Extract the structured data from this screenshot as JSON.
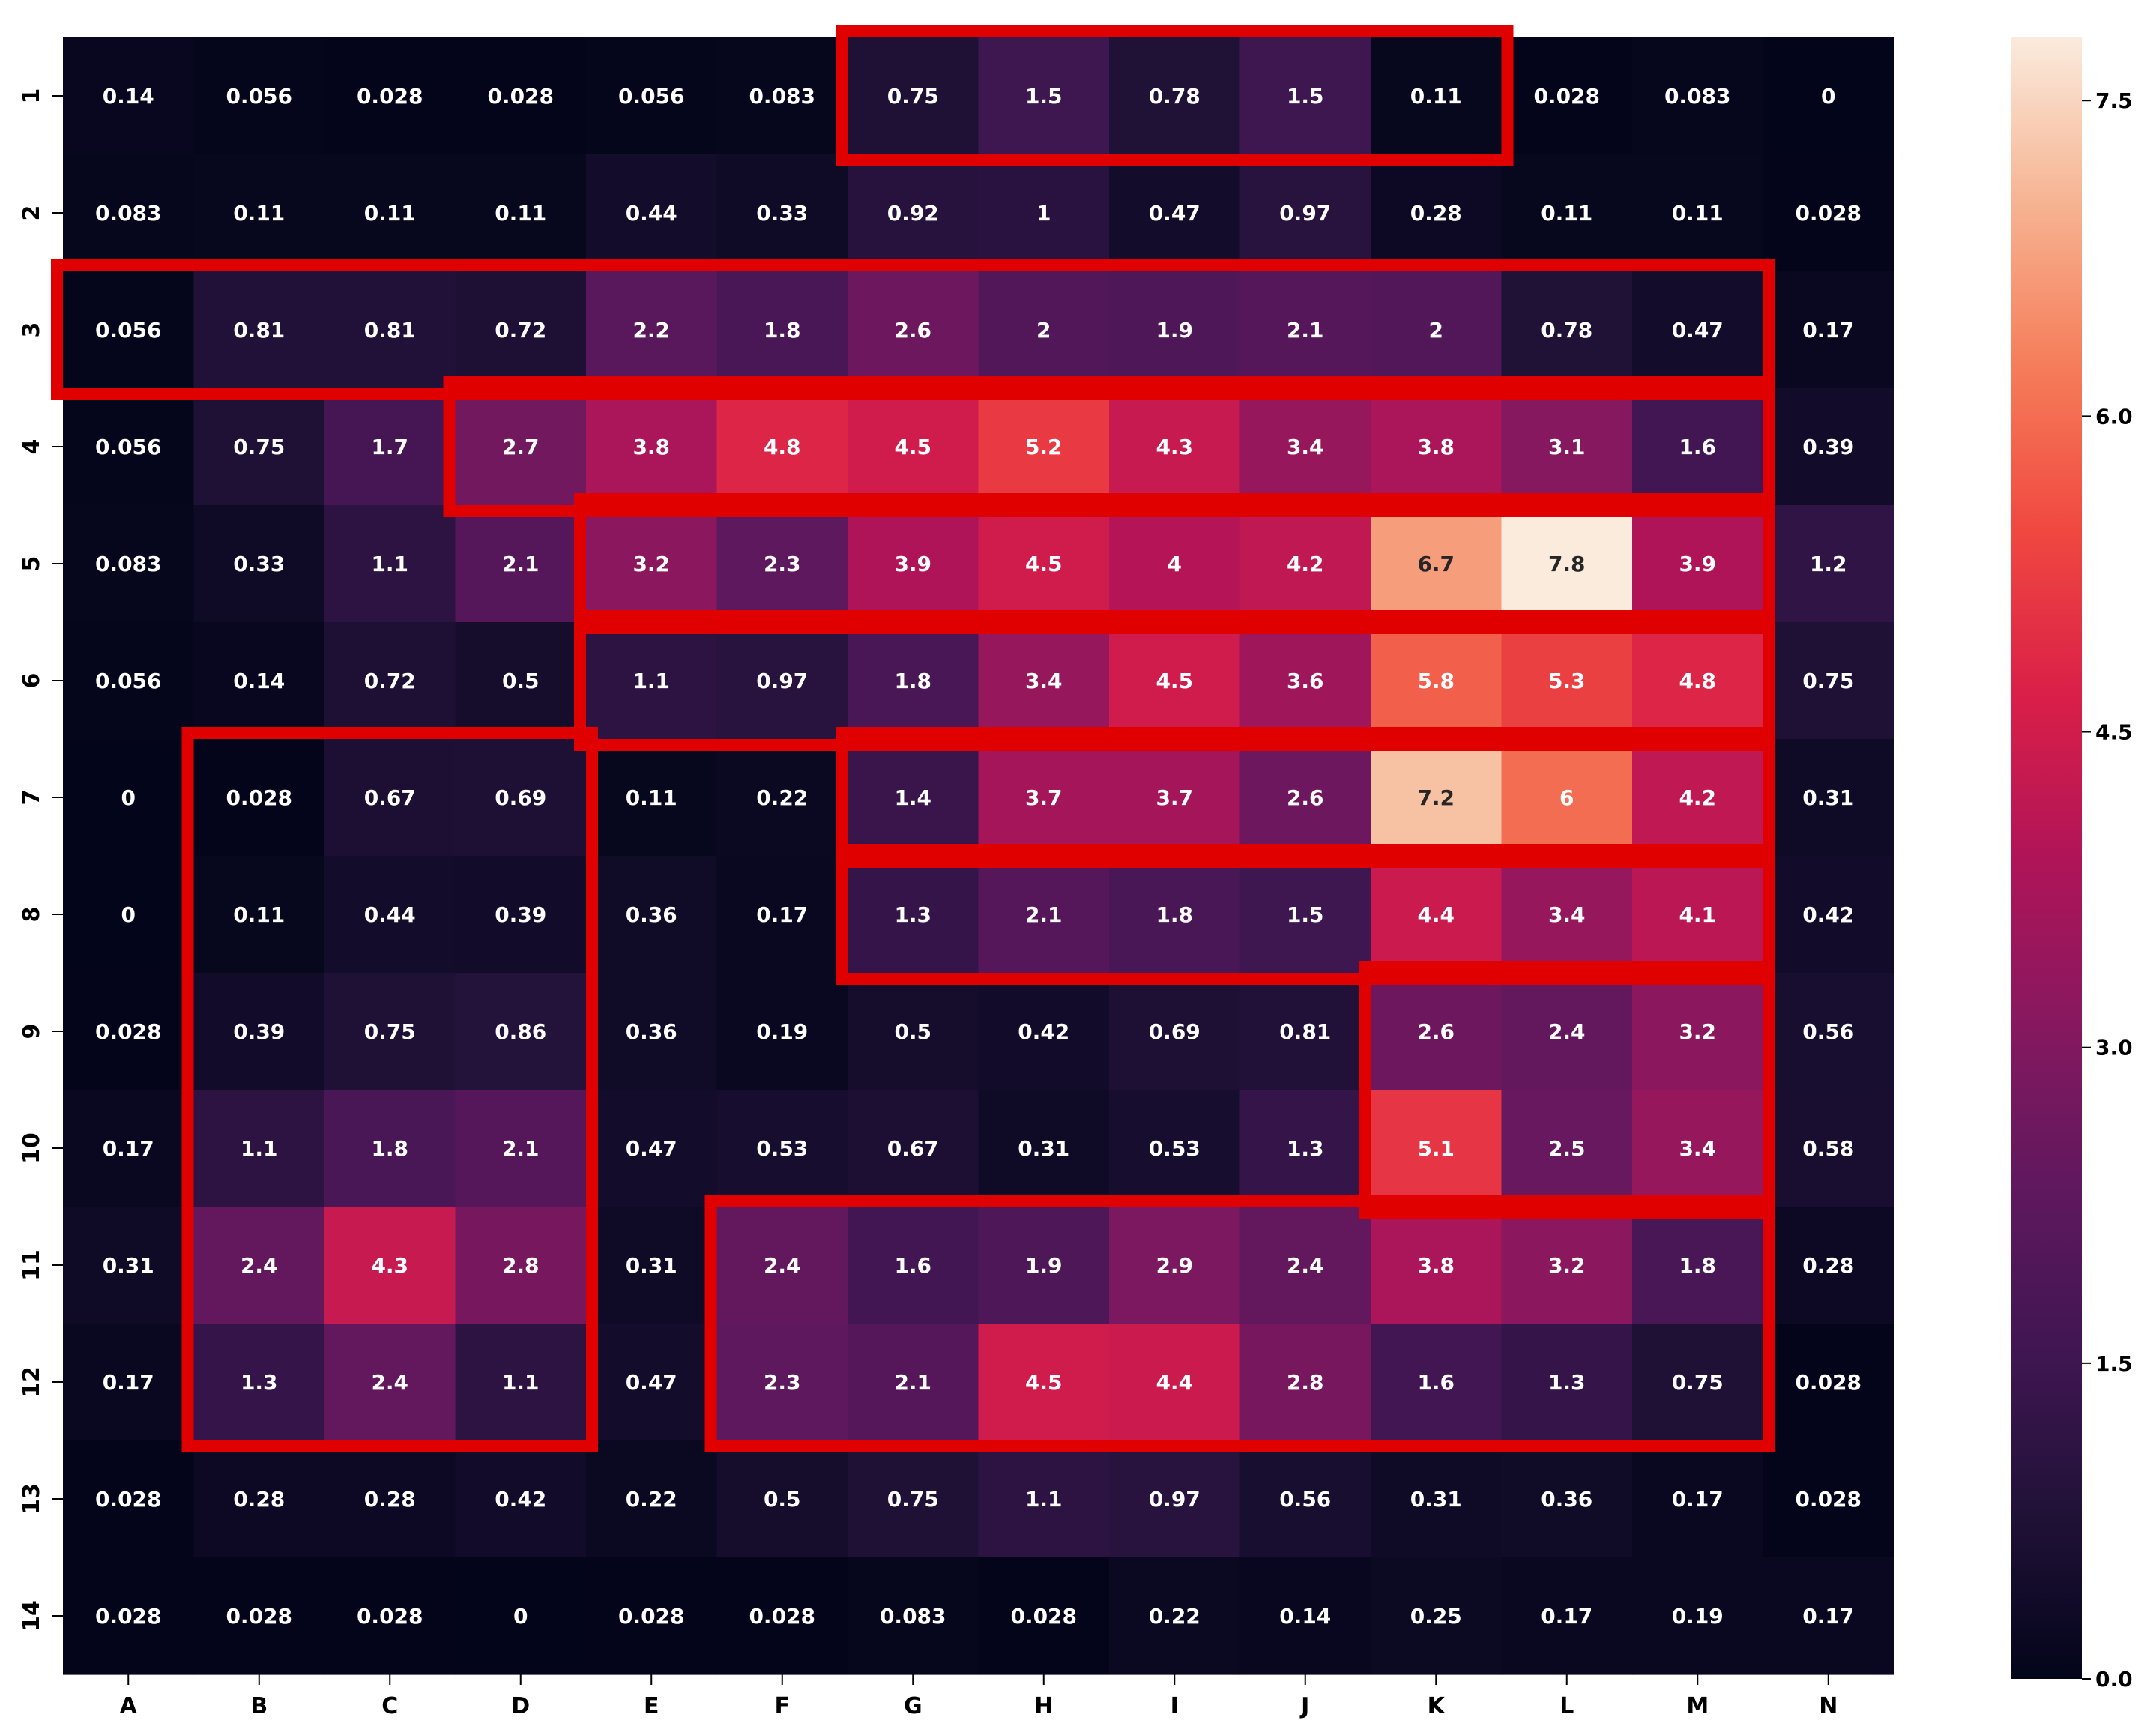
{
  "chart_data": {
    "type": "heatmap",
    "title": "",
    "xlabel": "",
    "ylabel": "",
    "columns": [
      "A",
      "B",
      "C",
      "D",
      "E",
      "F",
      "G",
      "H",
      "I",
      "J",
      "K",
      "L",
      "M",
      "N"
    ],
    "rows": [
      "1",
      "2",
      "3",
      "4",
      "5",
      "6",
      "7",
      "8",
      "9",
      "10",
      "11",
      "12",
      "13",
      "14"
    ],
    "values": [
      [
        0.14,
        0.056,
        0.028,
        0.028,
        0.056,
        0.083,
        0.75,
        1.5,
        0.78,
        1.5,
        0.11,
        0.028,
        0.083,
        0
      ],
      [
        0.083,
        0.11,
        0.11,
        0.11,
        0.44,
        0.33,
        0.92,
        1,
        0.47,
        0.97,
        0.28,
        0.11,
        0.11,
        0.028
      ],
      [
        0.056,
        0.81,
        0.81,
        0.72,
        2.2,
        1.8,
        2.6,
        2,
        1.9,
        2.1,
        2,
        0.78,
        0.47,
        0.17
      ],
      [
        0.056,
        0.75,
        1.7,
        2.7,
        3.8,
        4.8,
        4.5,
        5.2,
        4.3,
        3.4,
        3.8,
        3.1,
        1.6,
        0.39
      ],
      [
        0.083,
        0.33,
        1.1,
        2.1,
        3.2,
        2.3,
        3.9,
        4.5,
        4,
        4.2,
        6.7,
        7.8,
        3.9,
        1.2
      ],
      [
        0.056,
        0.14,
        0.72,
        0.5,
        1.1,
        0.97,
        1.8,
        3.4,
        4.5,
        3.6,
        5.8,
        5.3,
        4.8,
        0.75
      ],
      [
        0,
        0.028,
        0.67,
        0.69,
        0.11,
        0.22,
        1.4,
        3.7,
        3.7,
        2.6,
        7.2,
        6,
        4.2,
        0.31
      ],
      [
        0,
        0.11,
        0.44,
        0.39,
        0.36,
        0.17,
        1.3,
        2.1,
        1.8,
        1.5,
        4.4,
        3.4,
        4.1,
        0.42
      ],
      [
        0.028,
        0.39,
        0.75,
        0.86,
        0.36,
        0.19,
        0.5,
        0.42,
        0.69,
        0.81,
        2.6,
        2.4,
        3.2,
        0.56
      ],
      [
        0.17,
        1.1,
        1.8,
        2.1,
        0.47,
        0.53,
        0.67,
        0.31,
        0.53,
        1.3,
        5.1,
        2.5,
        3.4,
        0.58
      ],
      [
        0.31,
        2.4,
        4.3,
        2.8,
        0.31,
        2.4,
        1.6,
        1.9,
        2.9,
        2.4,
        3.8,
        3.2,
        1.8,
        0.28
      ],
      [
        0.17,
        1.3,
        2.4,
        1.1,
        0.47,
        2.3,
        2.1,
        4.5,
        4.4,
        2.8,
        1.6,
        1.3,
        0.75,
        0.028
      ],
      [
        0.028,
        0.28,
        0.28,
        0.42,
        0.22,
        0.5,
        0.75,
        1.1,
        0.97,
        0.56,
        0.31,
        0.36,
        0.17,
        0.028
      ],
      [
        0.028,
        0.028,
        0.028,
        0,
        0.028,
        0.028,
        0.083,
        0.028,
        0.22,
        0.14,
        0.25,
        0.17,
        0.19,
        0.17
      ]
    ],
    "value_range": [
      0,
      7.8
    ],
    "colorbar": {
      "ticks": [
        0.0,
        1.5,
        3.0,
        4.5,
        6.0,
        7.5
      ],
      "tick_labels": [
        "0.0",
        "1.5",
        "3.0",
        "4.5",
        "6.0",
        "7.5"
      ],
      "colormap": "rocket"
    },
    "annotations": {
      "description": "red outlined cell groups",
      "color": "#e00000",
      "regions": [
        {
          "rows": [
            "1"
          ],
          "columns": [
            "G",
            "K"
          ]
        },
        {
          "rows": [
            "3"
          ],
          "columns": [
            "A",
            "M"
          ]
        },
        {
          "rows": [
            "4"
          ],
          "columns": [
            "D",
            "M"
          ]
        },
        {
          "rows": [
            "5"
          ],
          "columns": [
            "E",
            "M"
          ]
        },
        {
          "rows": [
            "6"
          ],
          "columns": [
            "E",
            "M"
          ]
        },
        {
          "rows": [
            "7"
          ],
          "columns": [
            "G",
            "M"
          ]
        },
        {
          "rows": [
            "8"
          ],
          "columns": [
            "G",
            "M"
          ]
        },
        {
          "rows": [
            "9",
            "10"
          ],
          "columns": [
            "K",
            "M"
          ]
        },
        {
          "rows": [
            "7",
            "12"
          ],
          "columns": [
            "B",
            "D"
          ]
        },
        {
          "rows": [
            "11",
            "12"
          ],
          "columns": [
            "F",
            "M"
          ]
        }
      ]
    },
    "grid": false,
    "legend": "colorbar-right"
  }
}
